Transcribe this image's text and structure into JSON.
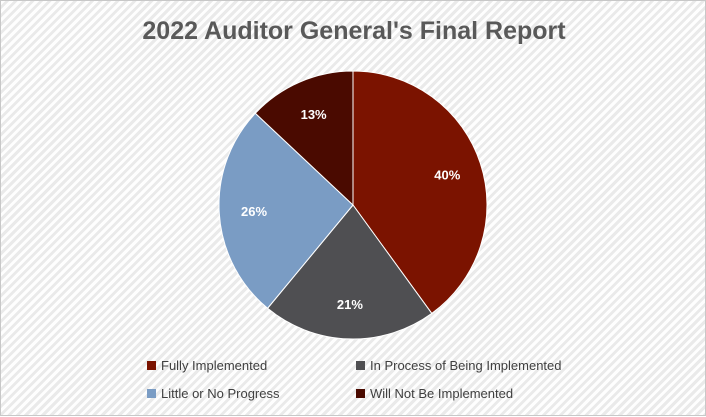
{
  "chart_data": {
    "type": "pie",
    "title": "2022 Auditor General's Final Report",
    "slices": [
      {
        "label": "Fully Implemented",
        "value": 40,
        "display": "40%",
        "color": "#7b1300"
      },
      {
        "label": "In Process of Being Implemented",
        "value": 21,
        "display": "21%",
        "color": "#4f4f52"
      },
      {
        "label": "Little or No Progress",
        "value": 26,
        "display": "26%",
        "color": "#7a9cc4"
      },
      {
        "label": "Will Not Be Implemented",
        "value": 13,
        "display": "13%",
        "color": "#4a0a00"
      }
    ],
    "legend_position": "bottom"
  }
}
